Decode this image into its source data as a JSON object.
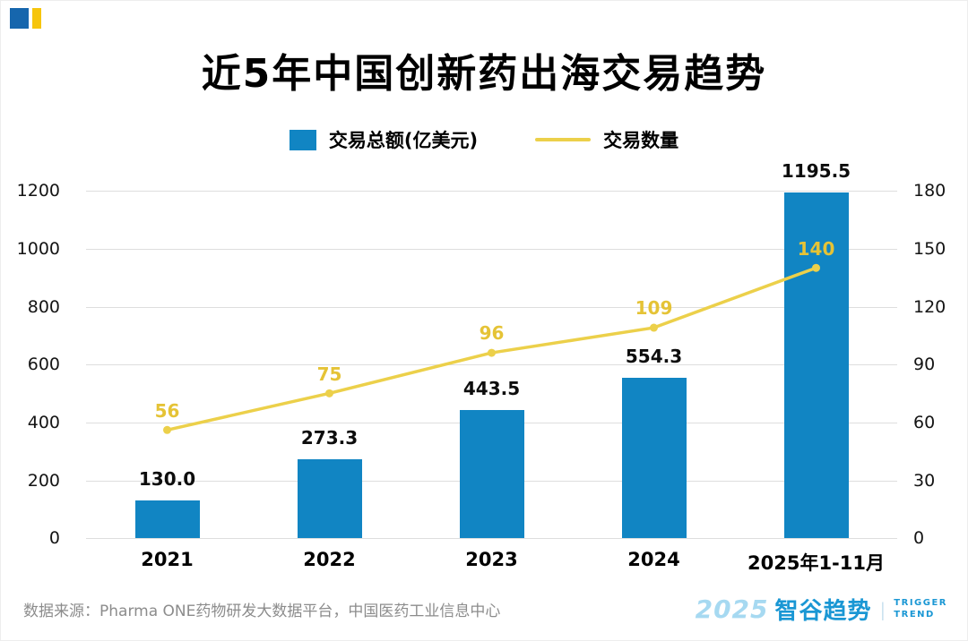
{
  "page": {
    "footer_source": "数据来源：Pharma ONE药物研发大数据平台，中国医药工业信息中心",
    "brand": {
      "year": "2025",
      "name": "智谷趋势",
      "divider": "|",
      "tagline_line1": "TRIGGER",
      "tagline_line2": "TREND"
    }
  },
  "legend": {
    "bar_label": "交易总额(亿美元)",
    "line_label": "交易数量"
  },
  "colors": {
    "bar": "#1185c3",
    "line": "#ecd04a",
    "line_label_text": "#e5c336",
    "grid": "#dedede",
    "corner_blue": "#1666ad",
    "corner_yellow": "#f6c50d",
    "brand_light_blue": "#a6d9f1",
    "brand_blue": "#1a97d4",
    "footer_text": "#8c8c8c"
  },
  "chart_data": {
    "type": "bar",
    "title": "近5年中国创新药出海交易趋势",
    "categories": [
      "2021",
      "2022",
      "2023",
      "2024",
      "2025年1-11月"
    ],
    "series": [
      {
        "name": "交易总额(亿美元)",
        "type": "bar",
        "axis": "left",
        "values": [
          130.0,
          273.3,
          443.5,
          554.3,
          1195.5
        ],
        "labels": [
          "130.0",
          "273.3",
          "443.5",
          "554.3",
          "1195.5"
        ]
      },
      {
        "name": "交易数量",
        "type": "line",
        "axis": "right",
        "values": [
          56,
          75,
          96,
          109,
          140
        ],
        "labels": [
          "56",
          "75",
          "96",
          "109",
          "140"
        ]
      }
    ],
    "left_axis": {
      "min": 0,
      "max": 1200,
      "step": 200,
      "ticks": [
        0,
        200,
        400,
        600,
        800,
        1000,
        1200
      ]
    },
    "right_axis": {
      "min": 0,
      "max": 180,
      "step": 30,
      "ticks": [
        0,
        30,
        60,
        90,
        120,
        150,
        180
      ]
    },
    "grid": true,
    "legend_position": "top"
  }
}
